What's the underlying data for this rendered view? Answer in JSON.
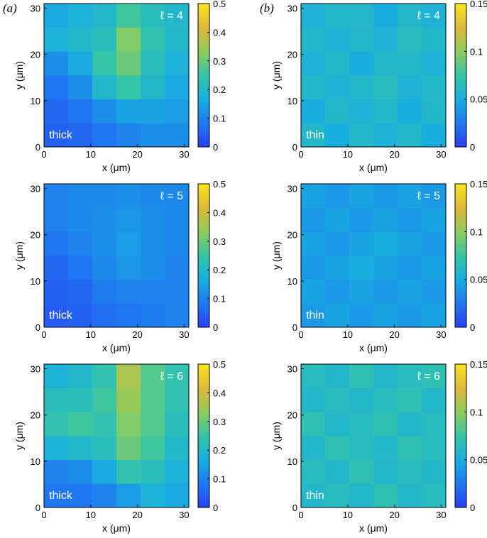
{
  "chart_data": [
    {
      "type": "heatmap",
      "panel_label": "(a)",
      "annotation": "ℓ = 4",
      "sample": "thick",
      "xlabel": "x (μm)",
      "ylabel": "y (μm)",
      "xlim": [
        0,
        31
      ],
      "ylim": [
        0,
        31
      ],
      "xticks": [
        0,
        10,
        20,
        30
      ],
      "yticks": [
        0,
        10,
        20,
        30
      ],
      "zlim": [
        0,
        0.5
      ],
      "zticks": [
        0,
        0.1,
        0.2,
        0.3,
        0.4,
        0.5
      ],
      "colormap": [
        "#2a3ef5",
        "#1f78f0",
        "#18aee0",
        "#35c5a8",
        "#8fcc5c",
        "#e0b83c",
        "#f9e51e"
      ],
      "z": [
        [
          0.05,
          0.06,
          0.08,
          0.1,
          0.12,
          0.12
        ],
        [
          0.06,
          0.08,
          0.12,
          0.15,
          0.15,
          0.14
        ],
        [
          0.08,
          0.12,
          0.2,
          0.25,
          0.2,
          0.16
        ],
        [
          0.12,
          0.16,
          0.25,
          0.3,
          0.22,
          0.18
        ],
        [
          0.18,
          0.2,
          0.22,
          0.32,
          0.24,
          0.2
        ],
        [
          0.16,
          0.18,
          0.2,
          0.26,
          0.22,
          0.2
        ]
      ]
    },
    {
      "type": "heatmap",
      "panel_label": "(b)",
      "annotation": "ℓ = 4",
      "sample": "thin",
      "xlabel": "x (μm)",
      "ylabel": "y (μm)",
      "xlim": [
        0,
        31
      ],
      "ylim": [
        0,
        31
      ],
      "xticks": [
        0,
        10,
        20,
        30
      ],
      "yticks": [
        0,
        10,
        20,
        30
      ],
      "zlim": [
        0,
        0.15
      ],
      "zticks": [
        0,
        0.05,
        0.1,
        0.15
      ],
      "colormap": [
        "#2a3ef5",
        "#1f78f0",
        "#18aee0",
        "#35c5a8",
        "#8fcc5c",
        "#e0b83c",
        "#f9e51e"
      ],
      "z": [
        [
          0.06,
          0.05,
          0.06,
          0.055,
          0.06,
          0.05
        ],
        [
          0.05,
          0.06,
          0.055,
          0.06,
          0.05,
          0.06
        ],
        [
          0.06,
          0.055,
          0.06,
          0.065,
          0.055,
          0.06
        ],
        [
          0.055,
          0.06,
          0.05,
          0.06,
          0.06,
          0.055
        ],
        [
          0.06,
          0.055,
          0.06,
          0.055,
          0.065,
          0.06
        ],
        [
          0.055,
          0.06,
          0.06,
          0.05,
          0.06,
          0.055
        ]
      ]
    },
    {
      "type": "heatmap",
      "annotation": "ℓ = 5",
      "sample": "thick",
      "xlabel": "x (μm)",
      "ylabel": "y (μm)",
      "xlim": [
        0,
        31
      ],
      "ylim": [
        0,
        31
      ],
      "xticks": [
        0,
        10,
        20,
        30
      ],
      "yticks": [
        0,
        10,
        20,
        30
      ],
      "zlim": [
        0,
        0.5
      ],
      "zticks": [
        0,
        0.1,
        0.2,
        0.3,
        0.4,
        0.5
      ],
      "colormap": [
        "#2a3ef5",
        "#1f78f0",
        "#18aee0",
        "#35c5a8",
        "#8fcc5c",
        "#e0b83c",
        "#f9e51e"
      ],
      "z": [
        [
          0.04,
          0.05,
          0.07,
          0.08,
          0.09,
          0.1
        ],
        [
          0.05,
          0.06,
          0.09,
          0.1,
          0.1,
          0.1
        ],
        [
          0.06,
          0.08,
          0.11,
          0.13,
          0.12,
          0.1
        ],
        [
          0.08,
          0.1,
          0.12,
          0.14,
          0.12,
          0.11
        ],
        [
          0.1,
          0.11,
          0.12,
          0.13,
          0.12,
          0.11
        ],
        [
          0.1,
          0.11,
          0.11,
          0.12,
          0.11,
          0.11
        ]
      ]
    },
    {
      "type": "heatmap",
      "annotation": "ℓ = 5",
      "sample": "thin",
      "xlabel": "x (μm)",
      "ylabel": "y (μm)",
      "xlim": [
        0,
        31
      ],
      "ylim": [
        0,
        31
      ],
      "xticks": [
        0,
        10,
        20,
        30
      ],
      "yticks": [
        0,
        10,
        20,
        30
      ],
      "zlim": [
        0,
        0.15
      ],
      "zticks": [
        0,
        0.05,
        0.1,
        0.15
      ],
      "colormap": [
        "#2a3ef5",
        "#1f78f0",
        "#18aee0",
        "#35c5a8",
        "#8fcc5c",
        "#e0b83c",
        "#f9e51e"
      ],
      "z": [
        [
          0.04,
          0.045,
          0.04,
          0.045,
          0.04,
          0.045
        ],
        [
          0.045,
          0.04,
          0.045,
          0.04,
          0.045,
          0.04
        ],
        [
          0.04,
          0.045,
          0.05,
          0.045,
          0.04,
          0.045
        ],
        [
          0.045,
          0.04,
          0.045,
          0.05,
          0.045,
          0.04
        ],
        [
          0.04,
          0.045,
          0.04,
          0.045,
          0.04,
          0.045
        ],
        [
          0.045,
          0.04,
          0.045,
          0.04,
          0.045,
          0.04
        ]
      ]
    },
    {
      "type": "heatmap",
      "annotation": "ℓ = 6",
      "sample": "thick",
      "xlabel": "x (μm)",
      "ylabel": "y (μm)",
      "xlim": [
        0,
        31
      ],
      "ylim": [
        0,
        31
      ],
      "xticks": [
        0,
        10,
        20,
        30
      ],
      "yticks": [
        0,
        10,
        20,
        30
      ],
      "zlim": [
        0,
        0.5
      ],
      "zticks": [
        0,
        0.1,
        0.2,
        0.3,
        0.4,
        0.5
      ],
      "colormap": [
        "#2a3ef5",
        "#1f78f0",
        "#18aee0",
        "#35c5a8",
        "#8fcc5c",
        "#e0b83c",
        "#f9e51e"
      ],
      "z": [
        [
          0.08,
          0.08,
          0.1,
          0.14,
          0.18,
          0.16
        ],
        [
          0.1,
          0.12,
          0.16,
          0.24,
          0.22,
          0.18
        ],
        [
          0.18,
          0.2,
          0.22,
          0.3,
          0.26,
          0.2
        ],
        [
          0.24,
          0.26,
          0.24,
          0.32,
          0.28,
          0.22
        ],
        [
          0.22,
          0.22,
          0.26,
          0.34,
          0.28,
          0.24
        ],
        [
          0.18,
          0.2,
          0.24,
          0.36,
          0.28,
          0.24
        ]
      ]
    },
    {
      "type": "heatmap",
      "annotation": "ℓ = 6",
      "sample": "thin",
      "xlabel": "x (μm)",
      "ylabel": "y (μm)",
      "xlim": [
        0,
        31
      ],
      "ylim": [
        0,
        31
      ],
      "xticks": [
        0,
        10,
        20,
        30
      ],
      "yticks": [
        0,
        10,
        20,
        30
      ],
      "zlim": [
        0,
        0.15
      ],
      "zticks": [
        0,
        0.05,
        0.1,
        0.15
      ],
      "colormap": [
        "#2a3ef5",
        "#1f78f0",
        "#18aee0",
        "#35c5a8",
        "#8fcc5c",
        "#e0b83c",
        "#f9e51e"
      ],
      "z": [
        [
          0.06,
          0.065,
          0.06,
          0.07,
          0.06,
          0.065
        ],
        [
          0.065,
          0.06,
          0.07,
          0.06,
          0.065,
          0.06
        ],
        [
          0.06,
          0.07,
          0.065,
          0.06,
          0.07,
          0.065
        ],
        [
          0.07,
          0.06,
          0.065,
          0.07,
          0.06,
          0.065
        ],
        [
          0.06,
          0.065,
          0.06,
          0.065,
          0.07,
          0.06
        ],
        [
          0.065,
          0.06,
          0.07,
          0.06,
          0.065,
          0.07
        ]
      ]
    }
  ]
}
